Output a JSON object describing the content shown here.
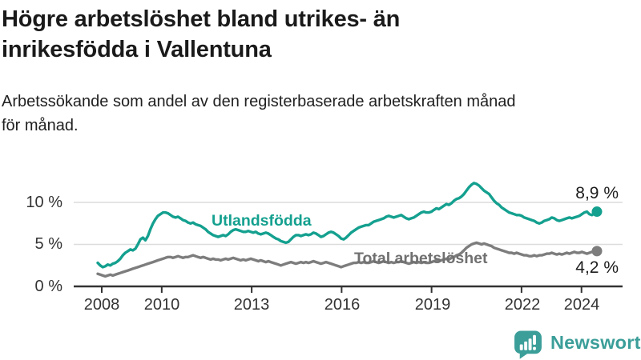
{
  "header": {
    "title": "Högre arbetslöshet bland utrikes- än\ninrikesfödda i Vallentuna",
    "subtitle": "Arbetssökande som andel av den registerbaserade arbetskraften månad\nför månad."
  },
  "chart_data": {
    "type": "line",
    "title": "Högre arbetslöshet bland utrikes- än inrikesfödda i Vallentuna",
    "x_unit": "month",
    "x_start": "2008-01",
    "x_end": "2024-08",
    "ylim": [
      0,
      13
    ],
    "grid": "horizontal",
    "y_ticks": [
      "0 %",
      "5 %",
      "10 %"
    ],
    "y_tick_values": [
      0,
      5,
      10
    ],
    "x_ticks": [
      "2008",
      "2010",
      "2013",
      "2016",
      "2019",
      "2022",
      "2024"
    ],
    "x_tick_years": [
      2008,
      2010,
      2013,
      2016,
      2019,
      2022,
      2024
    ],
    "series": [
      {
        "name": "Utlandsfödda",
        "color": "#14a08f",
        "end_label": "8,9 %",
        "end_value": 8.9,
        "values": [
          2.8,
          2.5,
          2.3,
          2.4,
          2.6,
          2.5,
          2.7,
          2.8,
          3.0,
          3.3,
          3.7,
          4.0,
          4.2,
          4.4,
          4.3,
          4.5,
          5.0,
          5.6,
          5.8,
          5.5,
          6.0,
          6.8,
          7.5,
          8.0,
          8.4,
          8.6,
          8.8,
          8.8,
          8.7,
          8.5,
          8.3,
          8.2,
          8.3,
          8.1,
          7.9,
          7.8,
          7.6,
          7.5,
          7.6,
          7.4,
          7.3,
          7.2,
          7.0,
          6.8,
          6.5,
          6.3,
          6.1,
          6.0,
          5.9,
          6.0,
          6.1,
          6.0,
          6.2,
          6.5,
          6.7,
          6.8,
          6.7,
          6.6,
          6.5,
          6.5,
          6.6,
          6.5,
          6.4,
          6.5,
          6.3,
          6.2,
          6.3,
          6.4,
          6.3,
          6.1,
          5.9,
          5.7,
          5.6,
          5.4,
          5.3,
          5.2,
          5.3,
          5.6,
          5.9,
          6.1,
          6.1,
          6.0,
          6.1,
          6.2,
          6.1,
          6.2,
          6.4,
          6.3,
          6.1,
          5.9,
          6.0,
          6.2,
          6.4,
          6.5,
          6.4,
          6.2,
          6.0,
          5.7,
          5.6,
          5.8,
          6.1,
          6.4,
          6.6,
          6.8,
          7.0,
          7.1,
          7.2,
          7.3,
          7.3,
          7.5,
          7.7,
          7.8,
          7.9,
          8.0,
          8.1,
          8.3,
          8.4,
          8.3,
          8.2,
          8.3,
          8.4,
          8.5,
          8.3,
          8.1,
          8.0,
          8.1,
          8.2,
          8.4,
          8.6,
          8.8,
          8.9,
          8.8,
          8.8,
          8.9,
          9.1,
          9.3,
          9.2,
          9.4,
          9.6,
          9.8,
          9.7,
          9.9,
          10.2,
          10.4,
          10.5,
          10.7,
          11.0,
          11.4,
          11.8,
          12.1,
          12.3,
          12.2,
          12.0,
          11.7,
          11.4,
          11.2,
          11.0,
          10.6,
          10.2,
          9.9,
          9.7,
          9.4,
          9.2,
          9.0,
          8.8,
          8.7,
          8.6,
          8.5,
          8.5,
          8.4,
          8.2,
          8.1,
          8.0,
          7.9,
          7.8,
          7.6,
          7.5,
          7.6,
          7.8,
          7.9,
          8.0,
          8.2,
          8.1,
          7.9,
          7.8,
          7.9,
          8.0,
          8.1,
          8.2,
          8.1,
          8.2,
          8.3,
          8.4,
          8.6,
          8.8,
          8.9,
          8.6,
          8.5,
          8.7,
          8.9
        ]
      },
      {
        "name": "Total arbetslöshet",
        "color": "#7d7d7d",
        "end_label": "4,2 %",
        "end_value": 4.2,
        "values": [
          1.5,
          1.4,
          1.3,
          1.2,
          1.3,
          1.4,
          1.3,
          1.4,
          1.5,
          1.6,
          1.7,
          1.8,
          1.9,
          2.0,
          2.1,
          2.2,
          2.3,
          2.4,
          2.5,
          2.6,
          2.7,
          2.8,
          2.9,
          3.0,
          3.1,
          3.2,
          3.3,
          3.4,
          3.5,
          3.5,
          3.4,
          3.5,
          3.6,
          3.5,
          3.4,
          3.5,
          3.5,
          3.6,
          3.7,
          3.6,
          3.5,
          3.4,
          3.5,
          3.4,
          3.3,
          3.2,
          3.3,
          3.2,
          3.2,
          3.1,
          3.2,
          3.3,
          3.2,
          3.3,
          3.4,
          3.3,
          3.2,
          3.1,
          3.2,
          3.1,
          3.2,
          3.3,
          3.2,
          3.1,
          3.0,
          3.1,
          3.0,
          2.9,
          3.0,
          2.9,
          2.8,
          2.7,
          2.6,
          2.5,
          2.6,
          2.7,
          2.8,
          2.9,
          2.8,
          2.7,
          2.8,
          2.9,
          2.8,
          2.9,
          2.8,
          2.9,
          3.0,
          2.9,
          2.8,
          2.7,
          2.8,
          2.9,
          2.8,
          2.7,
          2.6,
          2.5,
          2.4,
          2.3,
          2.4,
          2.5,
          2.6,
          2.7,
          2.8,
          2.8,
          2.9,
          2.8,
          2.9,
          2.8,
          2.8,
          2.9,
          3.0,
          2.9,
          2.8,
          2.9,
          3.0,
          2.9,
          2.8,
          2.9,
          2.8,
          2.9,
          2.9,
          3.0,
          2.9,
          2.8,
          2.7,
          2.8,
          2.9,
          2.8,
          2.9,
          2.8,
          2.9,
          2.8,
          2.8,
          2.9,
          3.0,
          3.1,
          3.0,
          3.1,
          3.2,
          3.3,
          3.2,
          3.4,
          3.5,
          3.7,
          3.8,
          4.0,
          4.3,
          4.6,
          4.8,
          5.0,
          5.1,
          5.2,
          5.1,
          5.0,
          5.1,
          5.0,
          4.9,
          4.8,
          4.6,
          4.5,
          4.4,
          4.3,
          4.2,
          4.1,
          4.0,
          4.0,
          3.9,
          4.0,
          3.9,
          3.8,
          3.7,
          3.7,
          3.6,
          3.6,
          3.7,
          3.6,
          3.7,
          3.7,
          3.8,
          3.9,
          3.9,
          4.0,
          3.9,
          3.8,
          3.9,
          3.8,
          3.9,
          4.0,
          3.9,
          4.0,
          4.1,
          4.0,
          4.0,
          4.1,
          4.0,
          3.9,
          4.0,
          4.1,
          4.2,
          4.2
        ]
      }
    ]
  },
  "footer": {
    "brand": "Newsworthy",
    "brand_color": "#3b9e99",
    "logo_icon": "bar-chart-speech-bubble-icon"
  }
}
